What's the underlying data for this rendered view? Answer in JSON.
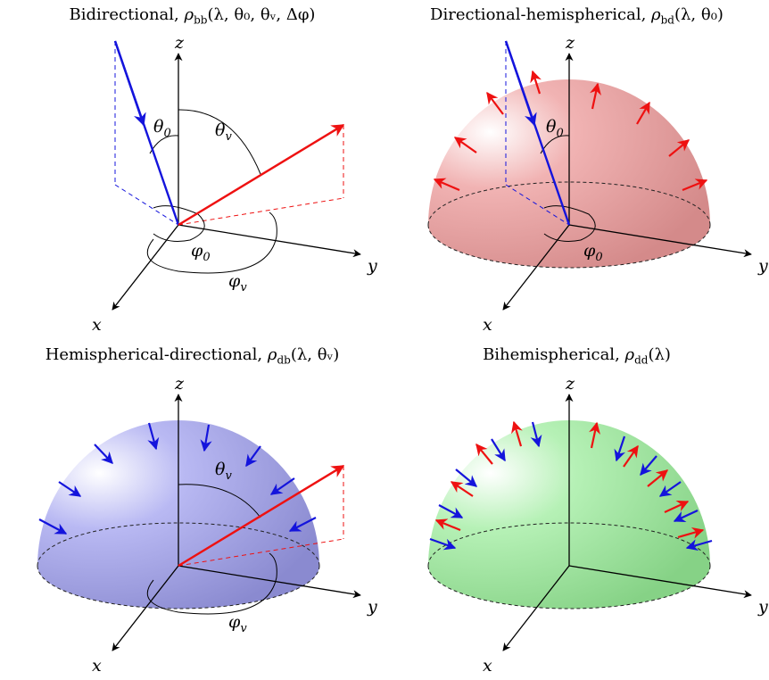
{
  "colors": {
    "incident": "#1414dc",
    "reflected": "#ee1111",
    "dome_red": "#e58a8a",
    "dome_blue": "#8a8ae5",
    "dome_green": "#8ae58a"
  },
  "panels": {
    "bb": {
      "name": "Bidirectional",
      "sym": "ρ",
      "sub": "bb",
      "args": "(λ, θ₀, θᵥ, Δφ)"
    },
    "bd": {
      "name": "Directional-hemispherical",
      "sym": "ρ",
      "sub": "bd",
      "args": "(λ, θ₀)"
    },
    "db": {
      "name": "Hemispherical-directional",
      "sym": "ρ",
      "sub": "db",
      "args": "(λ, θᵥ)"
    },
    "dd": {
      "name": "Bihemispherical",
      "sym": "ρ",
      "sub": "dd",
      "args": "(λ)"
    }
  },
  "labels": {
    "x": "x",
    "y": "y",
    "z": "z",
    "theta": "θ",
    "phi": "φ",
    "zero": "0",
    "v": "v"
  }
}
